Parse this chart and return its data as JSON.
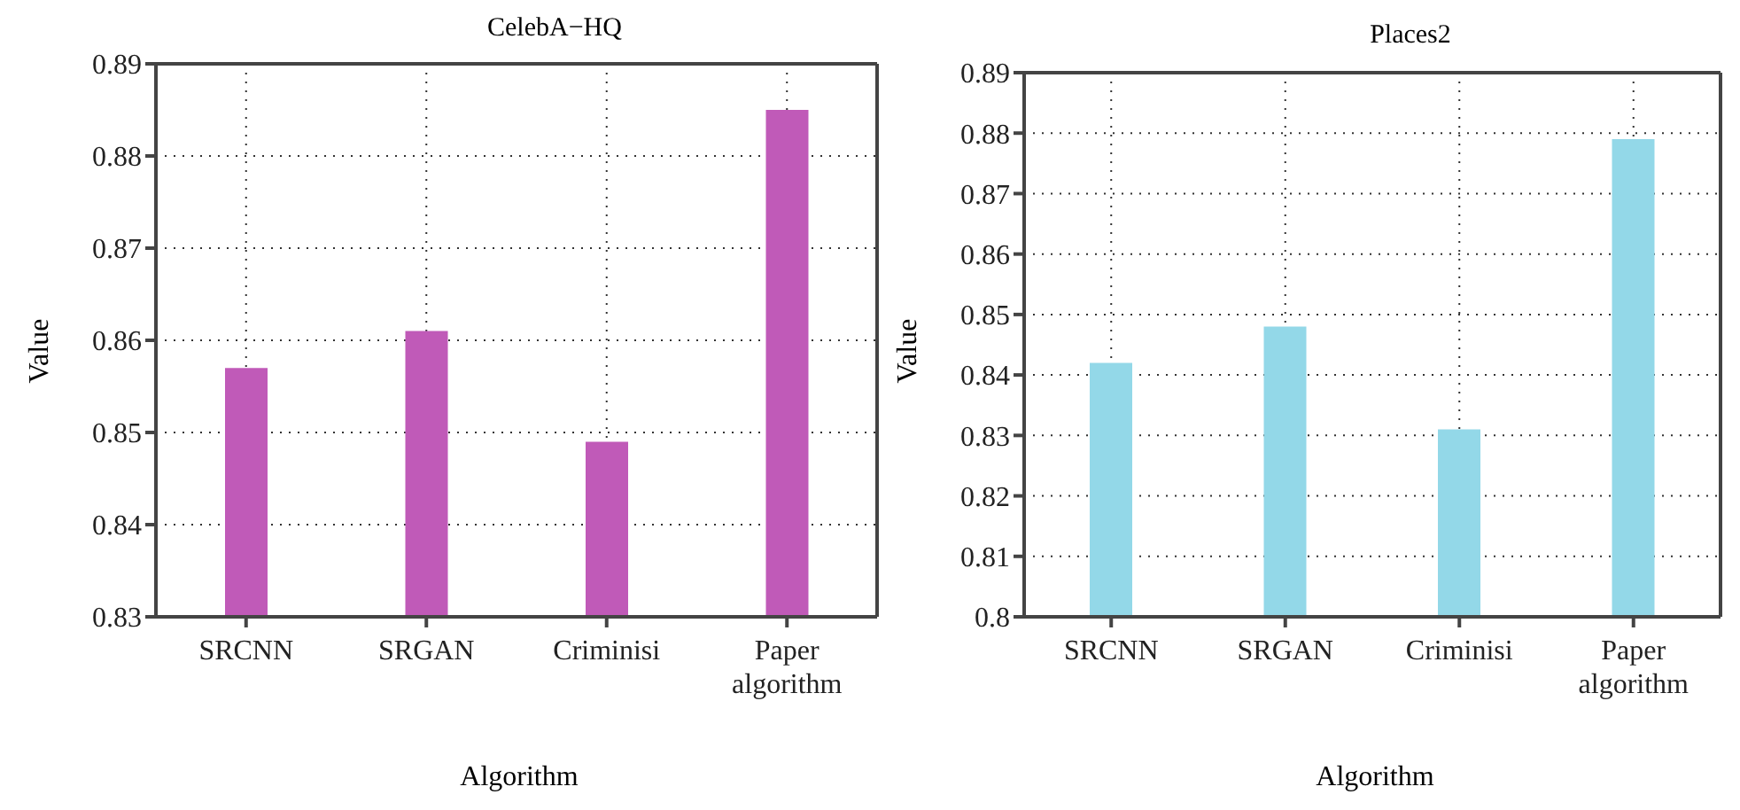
{
  "chart_data": [
    {
      "type": "bar",
      "title": "CelebA−HQ",
      "xlabel": "Algorithm",
      "ylabel": "Value",
      "categories": [
        "SRCNN",
        "SRGAN",
        "Criminisi",
        "Paper algorithm"
      ],
      "values": [
        0.857,
        0.861,
        0.849,
        0.885
      ],
      "color": "#c05ab8",
      "ylim": [
        0.83,
        0.89
      ],
      "yticks": [
        0.83,
        0.84,
        0.85,
        0.86,
        0.87,
        0.88,
        0.89
      ],
      "grid": true
    },
    {
      "type": "bar",
      "title": "Places2",
      "xlabel": "Algorithm",
      "ylabel": "Value",
      "categories": [
        "SRCNN",
        "SRGAN",
        "Criminisi",
        "Paper algorithm"
      ],
      "values": [
        0.842,
        0.848,
        0.831,
        0.879
      ],
      "color": "#93d8e8",
      "ylim": [
        0.8,
        0.89
      ],
      "yticks": [
        0.8,
        0.81,
        0.82,
        0.83,
        0.84,
        0.85,
        0.86,
        0.87,
        0.88,
        0.89
      ],
      "grid": true
    }
  ]
}
